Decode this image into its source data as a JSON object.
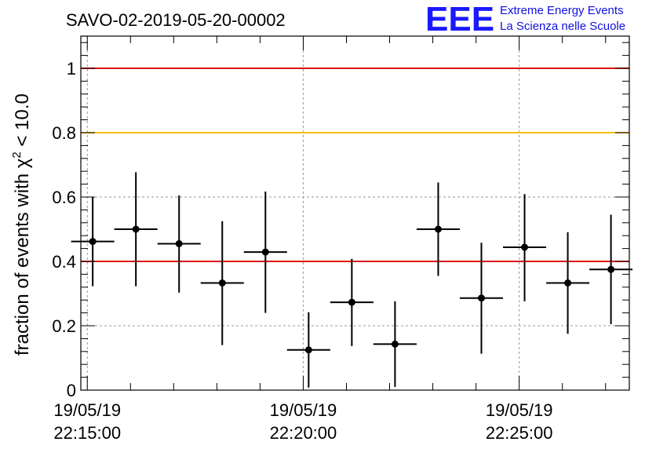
{
  "chart_data": {
    "type": "scatter",
    "title": "SAVO-02-2019-05-20-00002",
    "ylabel_main": "fraction of events with χ",
    "ylabel_sup": "2",
    "ylabel_tail": " < 10.0",
    "xlabel": "",
    "ylim": [
      0,
      1.1
    ],
    "y_ticks": [
      "0",
      "0.2",
      "0.4",
      "0.6",
      "0.8",
      "1"
    ],
    "y_tick_values": [
      0,
      0.2,
      0.4,
      0.6,
      0.8,
      1.0
    ],
    "x_tick_labels": [
      {
        "date": "19/05/19",
        "time": "22:15:00"
      },
      {
        "date": "19/05/19",
        "time": "22:20:00"
      },
      {
        "date": "19/05/19",
        "time": "22:25:00"
      }
    ],
    "x_start": "2019-05-19 22:15:00",
    "x_range_min": [
      -0.15,
      12.55
    ],
    "x_major_min": [
      0,
      5,
      10
    ],
    "reference_lines": [
      {
        "y": 1.0,
        "color": "#e01010"
      },
      {
        "y": 0.8,
        "color": "#f5c000"
      },
      {
        "y": 0.4,
        "color": "#e01010"
      }
    ],
    "points": [
      {
        "x": 0.125,
        "y": 0.462,
        "xerr": 0.5,
        "ylo": 0.323,
        "yhi": 0.6
      },
      {
        "x": 1.125,
        "y": 0.5,
        "xerr": 0.5,
        "ylo": 0.323,
        "yhi": 0.677
      },
      {
        "x": 2.125,
        "y": 0.455,
        "xerr": 0.5,
        "ylo": 0.303,
        "yhi": 0.605
      },
      {
        "x": 3.125,
        "y": 0.333,
        "xerr": 0.5,
        "ylo": 0.14,
        "yhi": 0.525
      },
      {
        "x": 4.125,
        "y": 0.429,
        "xerr": 0.5,
        "ylo": 0.24,
        "yhi": 0.617
      },
      {
        "x": 5.125,
        "y": 0.125,
        "xerr": 0.5,
        "ylo": 0.008,
        "yhi": 0.242
      },
      {
        "x": 6.125,
        "y": 0.273,
        "xerr": 0.5,
        "ylo": 0.137,
        "yhi": 0.408
      },
      {
        "x": 7.125,
        "y": 0.143,
        "xerr": 0.5,
        "ylo": 0.01,
        "yhi": 0.276
      },
      {
        "x": 8.125,
        "y": 0.5,
        "xerr": 0.5,
        "ylo": 0.355,
        "yhi": 0.645
      },
      {
        "x": 9.125,
        "y": 0.286,
        "xerr": 0.5,
        "ylo": 0.113,
        "yhi": 0.458
      },
      {
        "x": 10.125,
        "y": 0.444,
        "xerr": 0.5,
        "ylo": 0.276,
        "yhi": 0.609
      },
      {
        "x": 11.125,
        "y": 0.333,
        "xerr": 0.5,
        "ylo": 0.175,
        "yhi": 0.491
      },
      {
        "x": 12.125,
        "y": 0.375,
        "xerr": 0.5,
        "ylo": 0.205,
        "yhi": 0.545
      }
    ],
    "grid": true,
    "legend": "none",
    "marker_color": "#000000"
  },
  "logo": {
    "mark": "EEE",
    "line1": "Extreme Energy Events",
    "line2": "La Scienza nelle Scuole",
    "color": "#1a1aff"
  }
}
